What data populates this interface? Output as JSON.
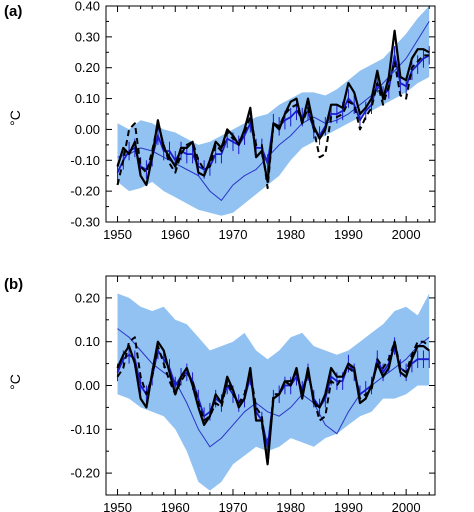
{
  "chart_data": [
    {
      "type": "line",
      "panel_label": "(a)",
      "ylabel": "°C",
      "xlim": [
        1948,
        2005
      ],
      "ylim": [
        -0.3,
        0.4
      ],
      "xticks": [
        "1950",
        "1960",
        "1970",
        "1980",
        "1990",
        "2000"
      ],
      "yticks": [
        "0.40",
        "0.30",
        "0.20",
        "0.10",
        "0.00",
        "-0.10",
        "-0.20",
        "-0.30"
      ],
      "ytick_values": [
        0.4,
        0.3,
        0.2,
        0.1,
        0.0,
        -0.1,
        -0.2,
        -0.3
      ],
      "xtick_values": [
        1950,
        1960,
        1970,
        1980,
        1990,
        2000
      ],
      "colors": {
        "band": "#91c2f2",
        "thin_blue": "#2a36c8",
        "blue": "#1a1ad0",
        "black": "#000000"
      },
      "band": {
        "x": [
          1950,
          1952,
          1954,
          1956,
          1958,
          1960,
          1962,
          1964,
          1966,
          1968,
          1970,
          1972,
          1974,
          1976,
          1978,
          1980,
          1982,
          1984,
          1986,
          1988,
          1990,
          1992,
          1994,
          1996,
          1998,
          2000,
          2002,
          2004
        ],
        "upper": [
          0.02,
          0.0,
          0.03,
          0.02,
          0.0,
          -0.01,
          -0.03,
          -0.05,
          -0.04,
          -0.02,
          0.0,
          0.02,
          0.04,
          0.05,
          0.08,
          0.1,
          0.12,
          0.12,
          0.11,
          0.13,
          0.16,
          0.19,
          0.21,
          0.23,
          0.27,
          0.31,
          0.36,
          0.4
        ],
        "lower": [
          -0.17,
          -0.2,
          -0.19,
          -0.17,
          -0.2,
          -0.22,
          -0.24,
          -0.26,
          -0.27,
          -0.28,
          -0.27,
          -0.24,
          -0.21,
          -0.18,
          -0.15,
          -0.1,
          -0.06,
          -0.04,
          -0.02,
          0.0,
          0.02,
          0.04,
          0.06,
          0.08,
          0.1,
          0.12,
          0.15,
          0.17
        ]
      },
      "series": [
        {
          "style": "thin-blue",
          "x": [
            1950,
            1952,
            1954,
            1956,
            1958,
            1960,
            1962,
            1964,
            1966,
            1968,
            1970,
            1972,
            1974,
            1976,
            1978,
            1980,
            1982,
            1984,
            1986,
            1988,
            1990,
            1992,
            1994,
            1996,
            1998,
            2000,
            2002,
            2004
          ],
          "values": [
            -0.09,
            -0.08,
            -0.06,
            -0.07,
            -0.09,
            -0.11,
            -0.13,
            -0.15,
            -0.2,
            -0.23,
            -0.18,
            -0.15,
            -0.13,
            -0.09,
            -0.05,
            -0.02,
            0.02,
            0.04,
            0.02,
            0.03,
            0.05,
            0.08,
            0.11,
            0.15,
            0.19,
            0.23,
            0.29,
            0.35
          ]
        },
        {
          "style": "blue-errorbars",
          "x": [
            1950,
            1951,
            1952,
            1953,
            1954,
            1955,
            1956,
            1957,
            1958,
            1959,
            1960,
            1961,
            1962,
            1963,
            1964,
            1965,
            1966,
            1967,
            1968,
            1969,
            1970,
            1971,
            1972,
            1973,
            1974,
            1975,
            1976,
            1977,
            1978,
            1979,
            1980,
            1981,
            1982,
            1983,
            1984,
            1985,
            1986,
            1987,
            1988,
            1989,
            1990,
            1991,
            1992,
            1993,
            1994,
            1995,
            1996,
            1997,
            1998,
            1999,
            2000,
            2001,
            2002,
            2003,
            2004
          ],
          "values": [
            -0.14,
            -0.1,
            -0.07,
            -0.06,
            -0.12,
            -0.13,
            -0.09,
            -0.02,
            -0.07,
            -0.07,
            -0.1,
            -0.07,
            -0.08,
            -0.08,
            -0.12,
            -0.13,
            -0.12,
            -0.08,
            -0.08,
            -0.03,
            -0.04,
            -0.05,
            -0.02,
            0.02,
            -0.06,
            -0.06,
            -0.11,
            0.02,
            0.01,
            0.03,
            0.04,
            0.06,
            0.04,
            0.06,
            0.0,
            -0.02,
            0.01,
            0.05,
            0.05,
            0.06,
            0.1,
            0.08,
            0.03,
            0.06,
            0.08,
            0.15,
            0.11,
            0.13,
            0.24,
            0.15,
            0.14,
            0.19,
            0.21,
            0.23,
            0.24
          ],
          "error": 0.03
        },
        {
          "style": "black-solid",
          "x": [
            1950,
            1951,
            1952,
            1953,
            1954,
            1955,
            1956,
            1957,
            1958,
            1959,
            1960,
            1961,
            1962,
            1963,
            1964,
            1965,
            1966,
            1967,
            1968,
            1969,
            1970,
            1971,
            1972,
            1973,
            1974,
            1975,
            1976,
            1977,
            1978,
            1979,
            1980,
            1981,
            1982,
            1983,
            1984,
            1985,
            1986,
            1987,
            1988,
            1989,
            1990,
            1991,
            1992,
            1993,
            1994,
            1995,
            1996,
            1997,
            1998,
            1999,
            2000,
            2001,
            2002,
            2003,
            2004
          ],
          "values": [
            -0.12,
            -0.06,
            -0.08,
            -0.04,
            -0.15,
            -0.18,
            -0.09,
            0.03,
            -0.06,
            -0.09,
            -0.12,
            -0.06,
            -0.06,
            -0.04,
            -0.14,
            -0.15,
            -0.1,
            -0.04,
            -0.06,
            0.0,
            -0.02,
            -0.05,
            0.0,
            0.07,
            -0.09,
            -0.07,
            -0.17,
            0.02,
            0.0,
            0.05,
            0.09,
            0.1,
            0.02,
            0.1,
            0.01,
            -0.03,
            0.0,
            0.08,
            0.08,
            0.07,
            0.15,
            0.12,
            0.05,
            0.07,
            0.1,
            0.19,
            0.1,
            0.17,
            0.32,
            0.17,
            0.16,
            0.23,
            0.26,
            0.26,
            0.25
          ]
        },
        {
          "style": "black-dashed",
          "x": [
            1950,
            1951,
            1952,
            1953,
            1954,
            1955,
            1956,
            1957,
            1958,
            1959,
            1960,
            1961,
            1962,
            1963,
            1964,
            1965,
            1966,
            1967,
            1968,
            1969,
            1970,
            1971,
            1972,
            1973,
            1974,
            1975,
            1976,
            1977,
            1978,
            1979,
            1980,
            1981,
            1982,
            1983,
            1984,
            1985,
            1986,
            1987,
            1988,
            1989,
            1990,
            1991,
            1992,
            1993,
            1994,
            1995,
            1996,
            1997,
            1998,
            1999,
            2000,
            2001,
            2002,
            2003,
            2004
          ],
          "values": [
            -0.18,
            -0.1,
            0.0,
            0.02,
            -0.12,
            -0.14,
            -0.07,
            0.02,
            -0.05,
            -0.11,
            -0.14,
            -0.08,
            -0.05,
            -0.04,
            -0.1,
            -0.13,
            -0.12,
            -0.05,
            -0.07,
            -0.01,
            -0.03,
            -0.04,
            -0.01,
            0.04,
            -0.05,
            -0.05,
            -0.19,
            0.02,
            0.01,
            0.05,
            0.07,
            0.08,
            0.02,
            0.07,
            0.0,
            -0.09,
            -0.08,
            0.04,
            0.04,
            0.05,
            0.09,
            0.08,
            0.0,
            0.04,
            0.07,
            0.15,
            0.08,
            0.14,
            0.22,
            0.11,
            0.1,
            0.2,
            0.22,
            0.24,
            0.24
          ]
        }
      ]
    },
    {
      "type": "line",
      "panel_label": "(b)",
      "ylabel": "°C",
      "xlim": [
        1948,
        2005
      ],
      "ylim": [
        -0.25,
        0.25
      ],
      "xticks": [
        "1950",
        "1960",
        "1970",
        "1980",
        "1990",
        "2000"
      ],
      "yticks": [
        "0.20",
        "0.10",
        "0.00",
        "-0.10",
        "-0.20"
      ],
      "ytick_values": [
        0.2,
        0.1,
        0.0,
        -0.1,
        -0.2
      ],
      "xtick_values": [
        1950,
        1960,
        1970,
        1980,
        1990,
        2000
      ],
      "colors": {
        "band": "#91c2f2",
        "thin_blue": "#2a36c8",
        "blue": "#1a1ad0",
        "black": "#000000"
      },
      "band": {
        "x": [
          1950,
          1952,
          1954,
          1956,
          1958,
          1960,
          1962,
          1964,
          1966,
          1968,
          1970,
          1972,
          1974,
          1976,
          1978,
          1980,
          1982,
          1984,
          1986,
          1988,
          1990,
          1992,
          1994,
          1996,
          1998,
          2000,
          2002,
          2004
        ],
        "upper": [
          0.21,
          0.2,
          0.18,
          0.17,
          0.18,
          0.15,
          0.14,
          0.11,
          0.08,
          0.09,
          0.1,
          0.12,
          0.08,
          0.06,
          0.08,
          0.11,
          0.12,
          0.09,
          0.08,
          0.07,
          0.08,
          0.1,
          0.12,
          0.14,
          0.17,
          0.18,
          0.16,
          0.21
        ],
        "lower": [
          -0.02,
          -0.03,
          -0.05,
          -0.06,
          -0.07,
          -0.1,
          -0.15,
          -0.22,
          -0.24,
          -0.22,
          -0.18,
          -0.16,
          -0.14,
          -0.15,
          -0.14,
          -0.12,
          -0.13,
          -0.14,
          -0.12,
          -0.11,
          -0.09,
          -0.07,
          -0.06,
          -0.03,
          -0.03,
          -0.02,
          0.0,
          0.0
        ]
      },
      "series": [
        {
          "style": "thin-blue",
          "x": [
            1950,
            1952,
            1954,
            1956,
            1958,
            1960,
            1962,
            1964,
            1966,
            1968,
            1970,
            1972,
            1974,
            1976,
            1978,
            1980,
            1982,
            1984,
            1986,
            1988,
            1990,
            1992,
            1994,
            1996,
            1998,
            2000,
            2002,
            2004
          ],
          "values": [
            0.13,
            0.11,
            0.08,
            0.05,
            0.03,
            0.01,
            -0.04,
            -0.1,
            -0.14,
            -0.12,
            -0.09,
            -0.06,
            -0.04,
            -0.06,
            -0.07,
            -0.05,
            -0.02,
            -0.04,
            -0.09,
            -0.11,
            -0.06,
            -0.02,
            0.0,
            0.02,
            0.04,
            0.06,
            0.09,
            0.11
          ]
        },
        {
          "style": "blue-errorbars",
          "x": [
            1950,
            1951,
            1952,
            1953,
            1954,
            1955,
            1956,
            1957,
            1958,
            1959,
            1960,
            1961,
            1962,
            1963,
            1964,
            1965,
            1966,
            1967,
            1968,
            1969,
            1970,
            1971,
            1972,
            1973,
            1974,
            1975,
            1976,
            1977,
            1978,
            1979,
            1980,
            1981,
            1982,
            1983,
            1984,
            1985,
            1986,
            1987,
            1988,
            1989,
            1990,
            1991,
            1992,
            1993,
            1994,
            1995,
            1996,
            1997,
            1998,
            1999,
            2000,
            2001,
            2002,
            2003,
            2004
          ],
          "values": [
            0.03,
            0.06,
            0.07,
            0.06,
            0.0,
            -0.02,
            0.02,
            0.08,
            0.06,
            0.04,
            0.0,
            0.02,
            0.03,
            0.01,
            -0.03,
            -0.07,
            -0.06,
            -0.03,
            -0.04,
            0.0,
            -0.02,
            -0.04,
            -0.03,
            0.02,
            -0.06,
            -0.08,
            -0.14,
            -0.03,
            -0.02,
            0.0,
            0.0,
            0.02,
            -0.01,
            0.03,
            -0.03,
            -0.05,
            -0.03,
            0.02,
            0.01,
            0.01,
            0.05,
            0.03,
            -0.02,
            -0.01,
            0.0,
            0.06,
            0.03,
            0.05,
            0.09,
            0.04,
            0.03,
            0.05,
            0.06,
            0.06,
            0.06
          ],
          "error": 0.02
        },
        {
          "style": "black-solid",
          "x": [
            1950,
            1951,
            1952,
            1953,
            1954,
            1955,
            1956,
            1957,
            1958,
            1959,
            1960,
            1961,
            1962,
            1963,
            1964,
            1965,
            1966,
            1967,
            1968,
            1969,
            1970,
            1971,
            1972,
            1973,
            1974,
            1975,
            1976,
            1977,
            1978,
            1979,
            1980,
            1981,
            1982,
            1983,
            1984,
            1985,
            1986,
            1987,
            1988,
            1989,
            1990,
            1991,
            1992,
            1993,
            1994,
            1995,
            1996,
            1997,
            1998,
            1999,
            2000,
            2001,
            2002,
            2003,
            2004
          ],
          "values": [
            0.04,
            0.07,
            0.09,
            0.05,
            -0.03,
            -0.05,
            0.03,
            0.1,
            0.08,
            0.03,
            -0.02,
            0.02,
            0.04,
            0.0,
            -0.05,
            -0.09,
            -0.07,
            -0.02,
            -0.04,
            0.02,
            -0.01,
            -0.05,
            -0.03,
            0.04,
            -0.08,
            -0.08,
            -0.18,
            -0.03,
            -0.02,
            0.01,
            0.0,
            0.04,
            -0.03,
            0.04,
            -0.04,
            -0.05,
            -0.02,
            0.04,
            0.02,
            0.02,
            0.05,
            0.04,
            -0.04,
            -0.03,
            0.0,
            0.05,
            0.02,
            0.04,
            0.1,
            0.03,
            0.02,
            0.06,
            0.09,
            0.09,
            0.08
          ]
        },
        {
          "style": "black-dashed",
          "x": [
            1950,
            1951,
            1952,
            1953,
            1954,
            1955,
            1956,
            1957,
            1958,
            1959,
            1960,
            1961,
            1962,
            1963,
            1964,
            1965,
            1966,
            1967,
            1968,
            1969,
            1970,
            1971,
            1972,
            1973,
            1974,
            1975,
            1976,
            1977,
            1978,
            1979,
            1980,
            1981,
            1982,
            1983,
            1984,
            1985,
            1986,
            1987,
            1988,
            1989,
            1990,
            1991,
            1992,
            1993,
            1994,
            1995,
            1996,
            1997,
            1998,
            1999,
            2000,
            2001,
            2002,
            2003,
            2004
          ],
          "values": [
            0.02,
            0.04,
            0.1,
            0.11,
            0.02,
            -0.02,
            0.02,
            0.09,
            0.05,
            0.01,
            -0.02,
            0.01,
            0.03,
            0.01,
            -0.04,
            -0.08,
            -0.07,
            -0.04,
            -0.05,
            0.01,
            -0.02,
            -0.04,
            -0.02,
            0.03,
            -0.05,
            -0.07,
            -0.18,
            -0.02,
            -0.02,
            0.01,
            0.01,
            0.03,
            -0.02,
            0.03,
            -0.03,
            -0.08,
            -0.07,
            0.01,
            0.0,
            0.02,
            0.04,
            0.03,
            -0.03,
            -0.02,
            -0.01,
            0.06,
            0.04,
            0.06,
            0.1,
            0.04,
            0.03,
            0.07,
            0.1,
            0.1,
            0.09
          ]
        }
      ]
    }
  ]
}
